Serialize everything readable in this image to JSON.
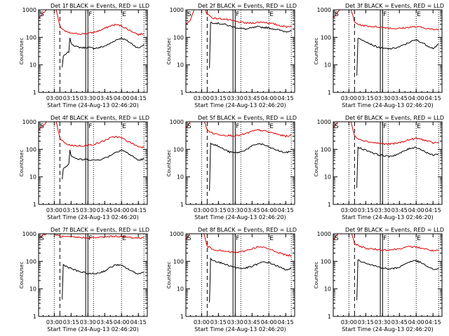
{
  "colors": {
    "events": "#000000",
    "lld": "#e00000",
    "axis": "#000000",
    "background": "#ffffff"
  },
  "figure": {
    "xlabel": "Start Time (24-Aug-13 02:46:20)",
    "ylabel": "Counts/sec"
  },
  "chart_data": [
    {
      "type": "line",
      "title": "Det 1f BLACK = Events, RED = LLD",
      "xlabel": "Start Time (24-Aug-13 02:46:20)",
      "ylabel": "Counts/sec",
      "x_ticks": [
        "03:00",
        "03:15",
        "03:30",
        "03:45",
        "04:00",
        "04:15"
      ],
      "y_ticks": [
        "1",
        "10",
        "100",
        "1000"
      ],
      "y_scale": "log",
      "xlim": [
        "02:46",
        "04:23"
      ],
      "ylim": [
        1,
        1000
      ],
      "series": [
        {
          "color": "black",
          "x": [
            "03:07",
            "03:08",
            "03:13",
            "03:14",
            "03:15",
            "03:20",
            "03:25",
            "03:30",
            "03:35",
            "03:40",
            "03:45",
            "03:50",
            "03:55",
            "04:00",
            "04:05",
            "04:10",
            "04:15",
            "04:20"
          ],
          "y": [
            8,
            20,
            30,
            100,
            60,
            45,
            42,
            43,
            40,
            42,
            48,
            60,
            80,
            95,
            75,
            55,
            40,
            55
          ]
        },
        {
          "color": "red",
          "x": [
            "02:46",
            "02:50",
            "02:55",
            "03:00",
            "03:05",
            "03:10",
            "03:15",
            "03:20",
            "03:25",
            "03:30",
            "03:35",
            "03:40",
            "03:45",
            "03:50",
            "03:55",
            "04:00",
            "04:05",
            "04:10",
            "04:15",
            "04:20"
          ],
          "y": [
            500,
            750,
            1200,
            2000,
            250,
            160,
            140,
            135,
            135,
            140,
            150,
            175,
            210,
            260,
            290,
            260,
            200,
            160,
            125,
            140
          ]
        }
      ],
      "markers": [
        "S",
        "F",
        "E"
      ]
    },
    {
      "type": "line",
      "title": "Det 2f BLACK = Events, RED = LLD",
      "xlabel": "Start Time (24-Aug-13 02:46:20)",
      "ylabel": "Counts/sec",
      "x_ticks": [
        "03:00",
        "03:15",
        "03:30",
        "03:45",
        "04:00",
        "04:15"
      ],
      "y_ticks": [
        "1",
        "10",
        "100",
        "1000"
      ],
      "y_scale": "log",
      "xlim": [
        "02:46",
        "04:23"
      ],
      "ylim": [
        1,
        1000
      ],
      "series": [
        {
          "color": "black",
          "x": [
            "03:07",
            "03:08",
            "03:13",
            "03:20",
            "03:25",
            "03:30",
            "03:35",
            "03:40",
            "03:45",
            "03:50",
            "03:55",
            "04:00",
            "04:05",
            "04:10",
            "04:15",
            "04:20"
          ],
          "y": [
            8,
            350,
            330,
            300,
            260,
            230,
            210,
            200,
            220,
            240,
            230,
            220,
            200,
            180,
            160,
            180
          ]
        },
        {
          "color": "red",
          "x": [
            "02:46",
            "02:50",
            "02:55",
            "03:00",
            "03:05",
            "03:10",
            "03:15",
            "03:20",
            "03:25",
            "03:30",
            "03:35",
            "03:40",
            "03:45",
            "03:50",
            "03:55",
            "04:00",
            "04:05",
            "04:10",
            "04:15",
            "04:20"
          ],
          "y": [
            300,
            400,
            1600,
            2500,
            700,
            500,
            480,
            460,
            420,
            380,
            350,
            330,
            330,
            350,
            360,
            330,
            300,
            270,
            240,
            260
          ]
        }
      ],
      "markers": [
        "S",
        "F",
        "E"
      ]
    },
    {
      "type": "line",
      "title": "Det 3f BLACK = Events, RED = LLD",
      "xlabel": "Start Time (24-Aug-13 02:46:20)",
      "ylabel": "Counts/sec",
      "x_ticks": [
        "03:00",
        "03:15",
        "03:30",
        "03:45",
        "04:00",
        "04:15"
      ],
      "y_ticks": [
        "1",
        "10",
        "100",
        "1000"
      ],
      "y_scale": "log",
      "xlim": [
        "02:46",
        "04:23"
      ],
      "ylim": [
        1,
        1000
      ],
      "series": [
        {
          "color": "black",
          "x": [
            "03:07",
            "03:08",
            "03:13",
            "03:20",
            "03:25",
            "03:30",
            "03:35",
            "03:40",
            "03:45",
            "03:50",
            "03:55",
            "04:00",
            "04:05",
            "04:10",
            "04:15",
            "04:20"
          ],
          "y": [
            4,
            90,
            80,
            55,
            45,
            40,
            38,
            40,
            45,
            55,
            70,
            80,
            65,
            50,
            40,
            55
          ]
        },
        {
          "color": "red",
          "x": [
            "02:46",
            "02:50",
            "02:55",
            "03:00",
            "03:05",
            "03:10",
            "03:15",
            "03:20",
            "03:25",
            "03:30",
            "03:35",
            "03:40",
            "03:45",
            "03:50",
            "03:55",
            "04:00",
            "04:05",
            "04:10",
            "04:15",
            "04:20"
          ],
          "y": [
            500,
            800,
            1500,
            2000,
            350,
            280,
            260,
            250,
            240,
            230,
            220,
            210,
            210,
            220,
            240,
            240,
            230,
            210,
            190,
            200
          ]
        }
      ],
      "markers": [
        "S",
        "F",
        "E"
      ]
    },
    {
      "type": "line",
      "title": "Det 4f BLACK = Events, RED = LLD",
      "xlabel": "Start Time (24-Aug-13 02:46:20)",
      "ylabel": "Counts/sec",
      "x_ticks": [
        "03:00",
        "03:15",
        "03:30",
        "03:45",
        "04:00",
        "04:15"
      ],
      "y_ticks": [
        "1",
        "10",
        "100",
        "1000"
      ],
      "y_scale": "log",
      "xlim": [
        "02:46",
        "04:23"
      ],
      "ylim": [
        1,
        1000
      ],
      "series": [
        {
          "color": "black",
          "x": [
            "03:07",
            "03:08",
            "03:13",
            "03:14",
            "03:15",
            "03:20",
            "03:25",
            "03:30",
            "03:35",
            "03:40",
            "03:45",
            "03:50",
            "03:55",
            "04:00",
            "04:05",
            "04:10",
            "04:15",
            "04:20"
          ],
          "y": [
            8,
            20,
            30,
            100,
            60,
            45,
            42,
            43,
            40,
            42,
            48,
            60,
            80,
            95,
            75,
            55,
            40,
            45
          ]
        },
        {
          "color": "red",
          "x": [
            "02:46",
            "02:50",
            "02:55",
            "03:00",
            "03:05",
            "03:10",
            "03:15",
            "03:20",
            "03:25",
            "03:30",
            "03:35",
            "03:40",
            "03:45",
            "03:50",
            "03:55",
            "04:00",
            "04:05",
            "04:10",
            "04:15",
            "04:20"
          ],
          "y": [
            500,
            750,
            1200,
            2000,
            250,
            160,
            140,
            135,
            135,
            140,
            150,
            175,
            210,
            260,
            290,
            260,
            200,
            160,
            125,
            120
          ]
        }
      ],
      "markers": [
        "S",
        "F",
        "E"
      ]
    },
    {
      "type": "line",
      "title": "Det 5f BLACK = Events, RED = LLD",
      "xlabel": "Start Time (24-Aug-13 02:46:20)",
      "ylabel": "Counts/sec",
      "x_ticks": [
        "03:00",
        "03:15",
        "03:30",
        "03:45",
        "04:00",
        "04:15"
      ],
      "y_ticks": [
        "1",
        "10",
        "100",
        "1000"
      ],
      "y_scale": "log",
      "xlim": [
        "02:46",
        "04:23"
      ],
      "ylim": [
        1,
        1000
      ],
      "series": [
        {
          "color": "black",
          "x": [
            "03:07",
            "03:08",
            "03:13",
            "03:20",
            "03:25",
            "03:30",
            "03:35",
            "03:40",
            "03:45",
            "03:50",
            "03:55",
            "04:00",
            "04:05",
            "04:10",
            "04:15",
            "04:20"
          ],
          "y": [
            3,
            170,
            140,
            100,
            80,
            75,
            80,
            100,
            130,
            160,
            150,
            120,
            100,
            85,
            75,
            85
          ]
        },
        {
          "color": "red",
          "x": [
            "02:46",
            "02:50",
            "02:55",
            "03:00",
            "03:05",
            "03:10",
            "03:15",
            "03:20",
            "03:25",
            "03:30",
            "03:35",
            "03:40",
            "03:45",
            "03:50",
            "03:55",
            "04:00",
            "04:05",
            "04:10",
            "04:15",
            "04:20"
          ],
          "y": [
            600,
            1000,
            1600,
            2000,
            500,
            380,
            350,
            330,
            320,
            310,
            330,
            380,
            450,
            500,
            480,
            420,
            380,
            330,
            300,
            320
          ]
        }
      ],
      "markers": [
        "S",
        "F",
        "E"
      ]
    },
    {
      "type": "line",
      "title": "Det 6f BLACK = Events, RED = LLD",
      "xlabel": "Start Time (24-Aug-13 02:46:20)",
      "ylabel": "Counts/sec",
      "x_ticks": [
        "03:00",
        "03:15",
        "03:30",
        "03:45",
        "04:00",
        "04:15"
      ],
      "y_ticks": [
        "1",
        "10",
        "100",
        "1000"
      ],
      "y_scale": "log",
      "xlim": [
        "02:46",
        "04:23"
      ],
      "ylim": [
        1,
        1000
      ],
      "series": [
        {
          "color": "black",
          "x": [
            "03:07",
            "03:08",
            "03:13",
            "03:20",
            "03:25",
            "03:30",
            "03:35",
            "03:40",
            "03:45",
            "03:50",
            "03:55",
            "04:00",
            "04:05",
            "04:10",
            "04:15",
            "04:20"
          ],
          "y": [
            4,
            120,
            100,
            80,
            65,
            60,
            55,
            60,
            70,
            90,
            110,
            120,
            95,
            75,
            60,
            70
          ]
        },
        {
          "color": "red",
          "x": [
            "02:46",
            "02:50",
            "02:55",
            "03:00",
            "03:05",
            "03:10",
            "03:15",
            "03:20",
            "03:25",
            "03:30",
            "03:35",
            "03:40",
            "03:45",
            "03:50",
            "03:55",
            "04:00",
            "04:05",
            "04:10",
            "04:15",
            "04:20"
          ],
          "y": [
            600,
            1000,
            1600,
            2000,
            300,
            230,
            200,
            180,
            170,
            160,
            155,
            160,
            175,
            200,
            230,
            250,
            230,
            200,
            170,
            180
          ]
        }
      ],
      "markers": [
        "S",
        "F",
        "E"
      ]
    },
    {
      "type": "line",
      "title": "Det 7f BLACK = Events, RED = LLD",
      "xlabel": "Start Time (24-Aug-13 02:46:20)",
      "ylabel": "Counts/sec",
      "x_ticks": [
        "03:00",
        "03:15",
        "03:30",
        "03:45",
        "04:00",
        "04:15"
      ],
      "y_ticks": [
        "1",
        "10",
        "100",
        "1000"
      ],
      "y_scale": "log",
      "xlim": [
        "02:46",
        "04:23"
      ],
      "ylim": [
        1,
        1000
      ],
      "series": [
        {
          "color": "black",
          "x": [
            "03:07",
            "03:08",
            "03:13",
            "03:20",
            "03:25",
            "03:30",
            "03:35",
            "03:40",
            "03:45",
            "03:50",
            "03:55",
            "04:00",
            "04:05",
            "04:10",
            "04:15",
            "04:20"
          ],
          "y": [
            4,
            75,
            60,
            45,
            40,
            36,
            35,
            38,
            45,
            60,
            75,
            70,
            55,
            42,
            35,
            40
          ]
        },
        {
          "color": "red",
          "x": [
            "02:46",
            "02:50",
            "02:55",
            "03:00",
            "03:05",
            "03:10",
            "03:15",
            "03:20",
            "03:25",
            "03:30",
            "03:35",
            "03:40",
            "03:45",
            "03:50",
            "03:55",
            "04:00",
            "04:05",
            "04:10",
            "04:15",
            "04:20"
          ],
          "y": [
            700,
            900,
            1100,
            1000,
            800,
            780,
            760,
            740,
            730,
            720,
            720,
            740,
            760,
            800,
            820,
            800,
            760,
            720,
            700,
            750
          ]
        }
      ],
      "markers": [
        "S",
        "F",
        "E"
      ]
    },
    {
      "type": "line",
      "title": "Det 8f BLACK = Events, RED = LLD",
      "xlabel": "Start Time (24-Aug-13 02:46:20)",
      "ylabel": "Counts/sec",
      "x_ticks": [
        "03:00",
        "03:15",
        "03:30",
        "03:45",
        "04:00",
        "04:15"
      ],
      "y_ticks": [
        "1",
        "10",
        "100",
        "1000"
      ],
      "y_scale": "log",
      "xlim": [
        "02:46",
        "04:23"
      ],
      "ylim": [
        1,
        1000
      ],
      "series": [
        {
          "color": "black",
          "x": [
            "03:07",
            "03:08",
            "03:13",
            "03:20",
            "03:25",
            "03:30",
            "03:35",
            "03:40",
            "03:45",
            "03:50",
            "03:55",
            "04:00",
            "04:05",
            "04:10",
            "04:15",
            "04:20"
          ],
          "y": [
            3,
            120,
            100,
            80,
            70,
            60,
            55,
            58,
            65,
            80,
            95,
            90,
            75,
            60,
            50,
            55
          ]
        },
        {
          "color": "red",
          "x": [
            "02:46",
            "02:50",
            "02:55",
            "03:00",
            "03:05",
            "03:10",
            "03:15",
            "03:20",
            "03:25",
            "03:30",
            "03:35",
            "03:40",
            "03:45",
            "03:50",
            "03:55",
            "04:00",
            "04:05",
            "04:10",
            "04:15",
            "04:20"
          ],
          "y": [
            600,
            1000,
            1600,
            2000,
            350,
            280,
            250,
            230,
            220,
            210,
            220,
            250,
            290,
            330,
            320,
            280,
            240,
            200,
            170,
            160
          ]
        }
      ],
      "markers": [
        "S",
        "F",
        "E"
      ]
    },
    {
      "type": "line",
      "title": "Det 9f BLACK = Events, RED = LLD",
      "xlabel": "Start Time (24-Aug-13 02:46:20)",
      "ylabel": "Counts/sec",
      "x_ticks": [
        "03:00",
        "03:15",
        "03:30",
        "03:45",
        "04:00",
        "04:15"
      ],
      "y_ticks": [
        "1",
        "10",
        "100",
        "1000"
      ],
      "y_scale": "log",
      "xlim": [
        "02:46",
        "04:23"
      ],
      "ylim": [
        1,
        1000
      ],
      "series": [
        {
          "color": "black",
          "x": [
            "03:07",
            "03:08",
            "03:13",
            "03:20",
            "03:25",
            "03:30",
            "03:35",
            "03:40",
            "03:45",
            "03:50",
            "03:55",
            "04:00",
            "04:05",
            "04:10",
            "04:15",
            "04:20"
          ],
          "y": [
            4,
            110,
            95,
            75,
            65,
            58,
            52,
            55,
            62,
            80,
            100,
            105,
            85,
            65,
            50,
            55
          ]
        },
        {
          "color": "red",
          "x": [
            "02:46",
            "02:50",
            "02:55",
            "03:00",
            "03:05",
            "03:10",
            "03:15",
            "03:20",
            "03:25",
            "03:30",
            "03:35",
            "03:40",
            "03:45",
            "03:50",
            "03:55",
            "04:00",
            "04:05",
            "04:10",
            "04:15",
            "04:20"
          ],
          "y": [
            600,
            1000,
            1600,
            2000,
            450,
            350,
            300,
            280,
            270,
            260,
            260,
            270,
            290,
            320,
            340,
            330,
            300,
            270,
            240,
            250
          ]
        }
      ],
      "markers": [
        "S",
        "F",
        "E"
      ]
    }
  ]
}
